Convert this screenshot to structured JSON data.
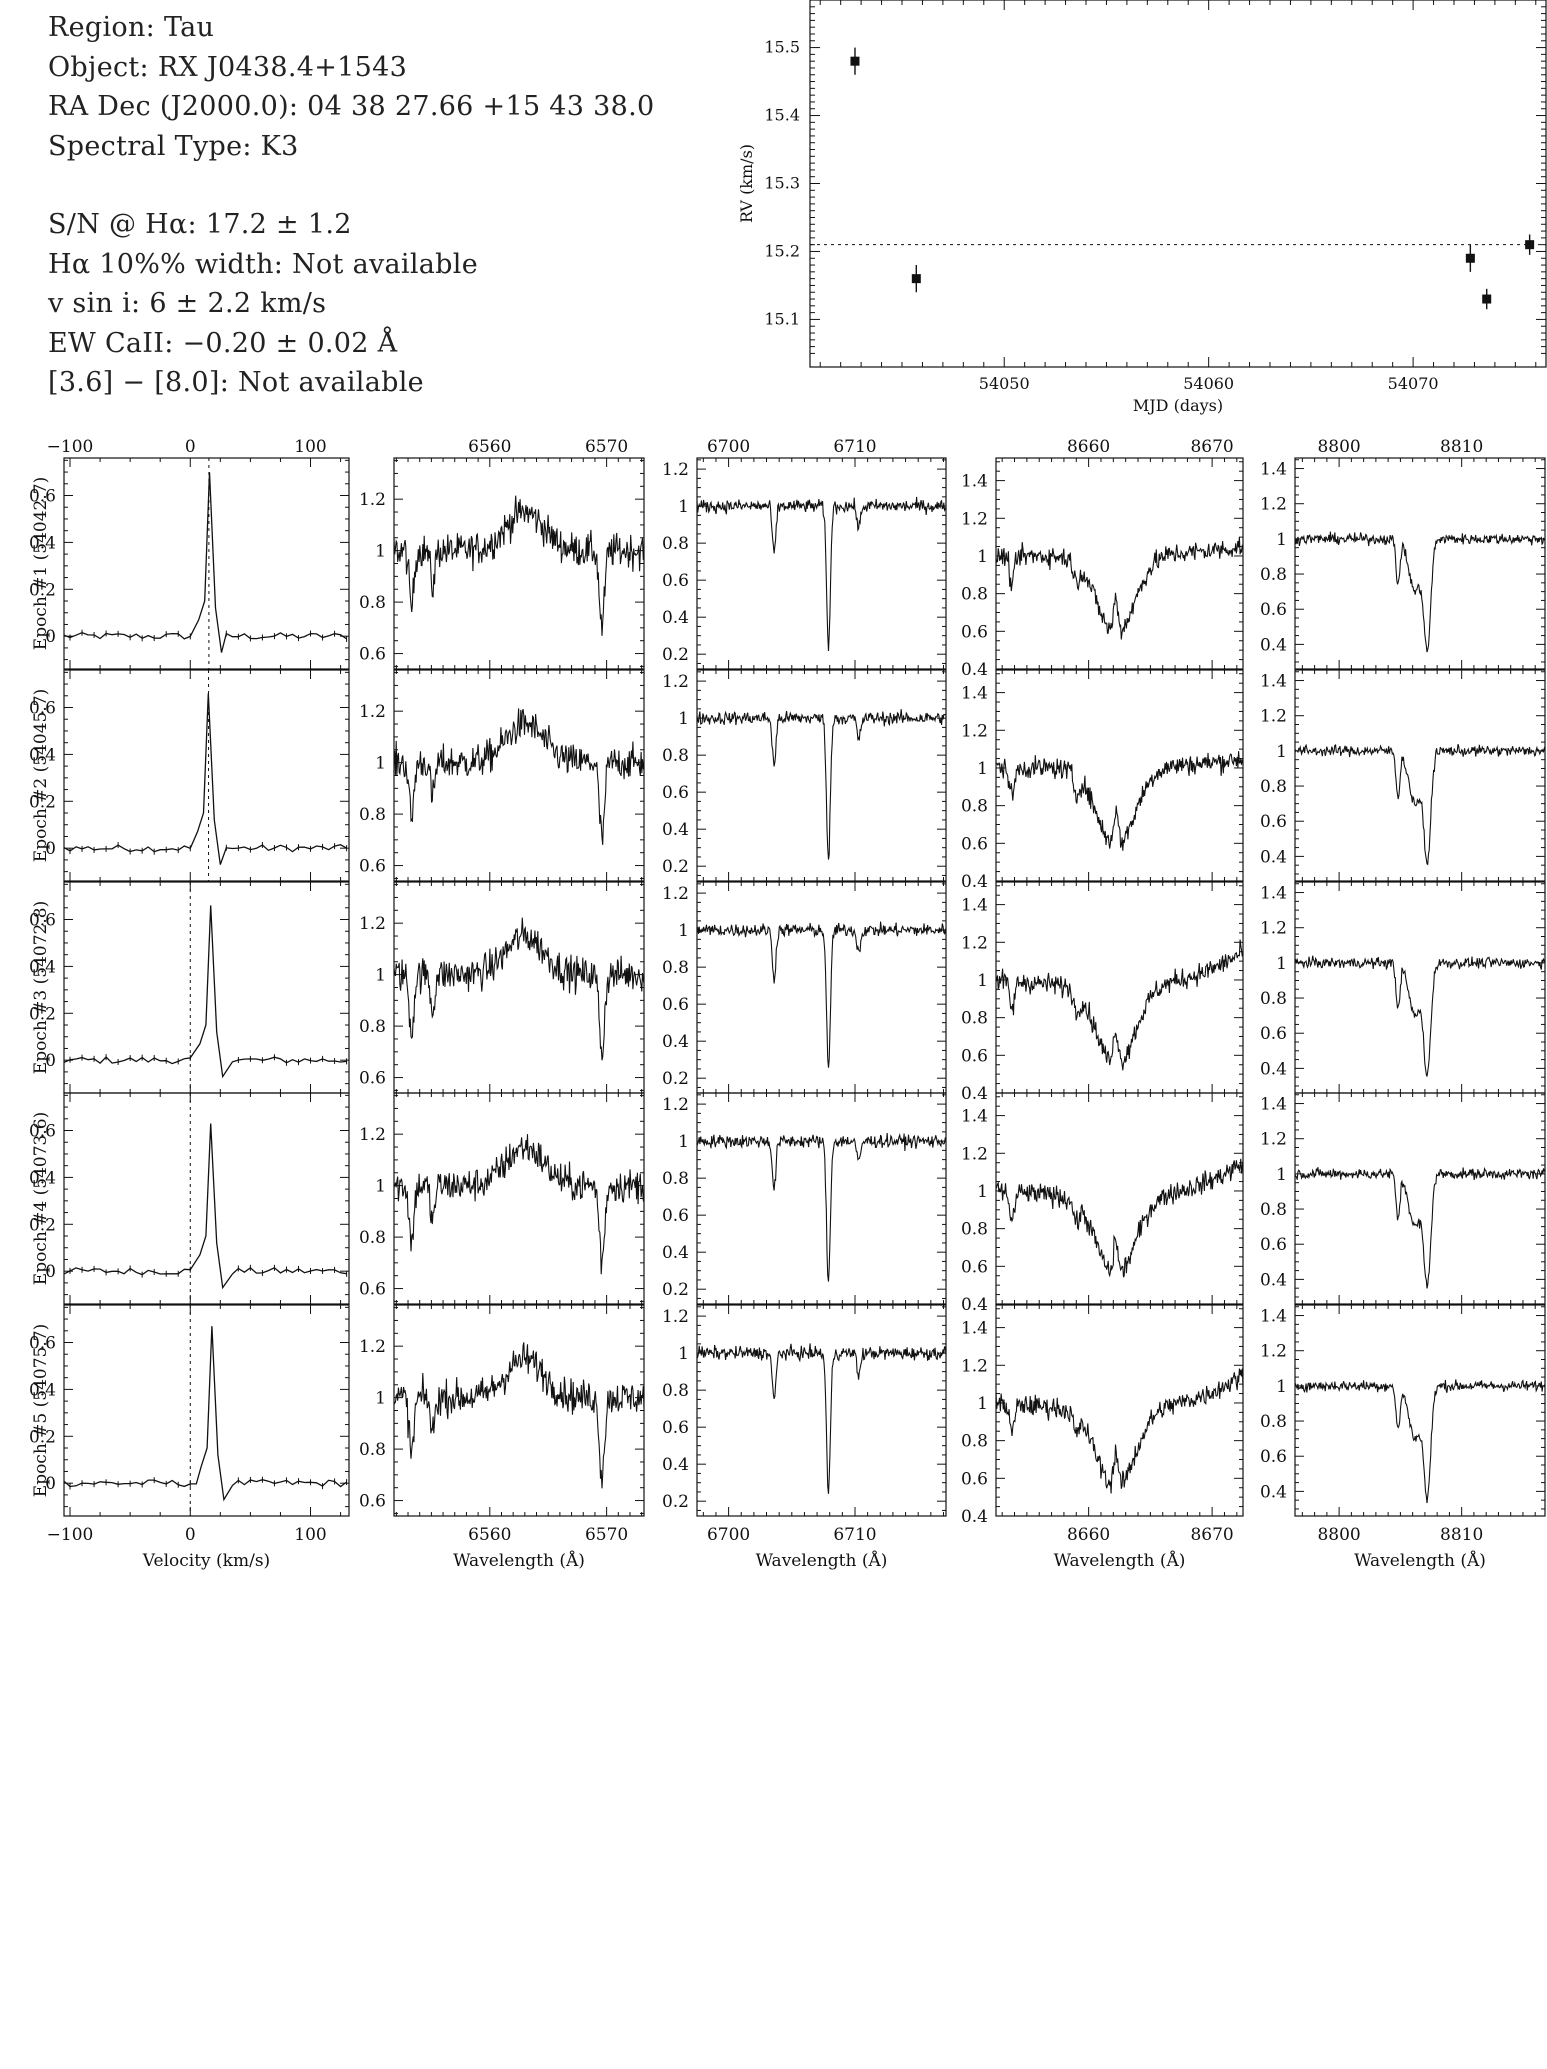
{
  "header": {
    "region": "Region: Tau",
    "object": "Object: RX J0438.4+1543",
    "coords": "RA Dec (J2000.0): 04 38 27.66 +15 43 38.0",
    "sptype": "Spectral Type: K3",
    "sn": "S/N @ Hα: 17.2 ± 1.2",
    "ha_width": "Hα 10%% width: Not available",
    "vsini": "v sin i: 6 ± 2.2 km/s",
    "ew_ca": "EW CaII: −0.20 ± 0.02 Å",
    "irac": "[3.6] − [8.0]: Not available"
  },
  "chart_data": [
    {
      "id": "rv",
      "type": "scatter",
      "xlabel": "MJD (days)",
      "ylabel": "RV (km/s)",
      "xlim": [
        54040.5,
        54076.5
      ],
      "ylim": [
        15.03,
        15.57
      ],
      "xticks": [
        54050,
        54060,
        54070
      ],
      "yticks": [
        15.1,
        15.2,
        15.3,
        15.4,
        15.5
      ],
      "mean_line": 15.21,
      "points": [
        {
          "x": 54042.7,
          "y": 15.48,
          "err": 0.02
        },
        {
          "x": 54045.7,
          "y": 15.16,
          "err": 0.02
        },
        {
          "x": 54072.8,
          "y": 15.19,
          "err": 0.02
        },
        {
          "x": 54073.6,
          "y": 15.13,
          "err": 0.015
        },
        {
          "x": 54075.7,
          "y": 15.21,
          "err": 0.015
        }
      ]
    },
    {
      "id": "epochs",
      "type": "line",
      "epoch_labels": [
        "Epoch #1 (54042.7)",
        "Epoch #2 (54045.7)",
        "Epoch #3 (54072.8)",
        "Epoch #4 (54073.6)",
        "Epoch #5 (54075.7)"
      ],
      "columns": [
        {
          "name": "ccf",
          "xlabel": "Velocity (km/s)",
          "xlim": [
            -105,
            132
          ],
          "ylim": [
            -0.14,
            0.76
          ],
          "xticks": [
            -100,
            0,
            100
          ],
          "yticks": [
            0,
            0.2,
            0.4,
            0.6
          ],
          "marker_x": [
            15.5,
            15.2,
            0,
            0,
            0
          ],
          "peak_x": [
            16,
            15,
            17,
            17,
            18
          ],
          "peak": [
            0.7,
            0.66,
            0.66,
            0.63,
            0.67
          ]
        },
        {
          "name": "halpha",
          "xlabel": "Wavelength (Å)",
          "xlim": [
            6551.8,
            6573.2
          ],
          "ylim": [
            0.54,
            1.36
          ],
          "xticks": [
            6560,
            6570
          ],
          "yticks": [
            0.6,
            0.8,
            1,
            1.2
          ],
          "lines": [
            {
              "c": 6569.6,
              "d": 0.3,
              "w": 0.22
            },
            {
              "c": 6553.3,
              "d": 0.22,
              "w": 0.2
            },
            {
              "c": 6555.1,
              "d": 0.14,
              "w": 0.18
            }
          ],
          "bumps": [
            {
              "c": 6563,
              "h": 0.15,
              "w": 1.6
            }
          ],
          "noise": 0.065
        },
        {
          "name": "li",
          "xlabel": "Wavelength (Å)",
          "xlim": [
            6697.5,
            6717.2
          ],
          "ylim": [
            0.12,
            1.26
          ],
          "xticks": [
            6700,
            6710
          ],
          "yticks": [
            0.2,
            0.4,
            0.6,
            0.8,
            1,
            1.2
          ],
          "lines": [
            {
              "c": 6707.9,
              "d": 0.76,
              "w": 0.15
            },
            {
              "c": 6703.6,
              "d": 0.26,
              "w": 0.14
            },
            {
              "c": 6710.3,
              "d": 0.12,
              "w": 0.14
            }
          ],
          "bumps": [],
          "noise": 0.035
        },
        {
          "name": "ca1",
          "xlabel": "Wavelength (Å)",
          "xlim": [
            8652.5,
            8672.5
          ],
          "ylim": [
            0.4,
            1.52
          ],
          "xticks": [
            8660,
            8670
          ],
          "yticks": [
            0.4,
            0.6,
            0.8,
            1,
            1.2,
            1.4
          ],
          "lines": [
            {
              "c": 8662.2,
              "d": 0.42,
              "w": 1.5
            },
            {
              "c": 8653.8,
              "d": 0.15,
              "w": 0.2
            },
            {
              "c": 8659,
              "d": 0.1,
              "w": 0.2
            }
          ],
          "bumps": [
            {
              "c": 8662.2,
              "h": 0.2,
              "w": 0.18
            }
          ],
          "noise": 0.055
        },
        {
          "name": "ca2",
          "xlabel": "Wavelength (Å)",
          "xlim": [
            8796.4,
            8816.8
          ],
          "ylim": [
            0.26,
            1.46
          ],
          "xticks": [
            8800,
            8810
          ],
          "yticks": [
            0.4,
            0.6,
            0.8,
            1,
            1.2,
            1.4
          ],
          "lines": [
            {
              "c": 8807.2,
              "d": 0.6,
              "w": 0.28
            },
            {
              "c": 8806.2,
              "d": 0.3,
              "w": 0.5
            },
            {
              "c": 8804.8,
              "d": 0.25,
              "w": 0.16
            }
          ],
          "bumps": [],
          "noise": 0.03
        }
      ]
    }
  ]
}
